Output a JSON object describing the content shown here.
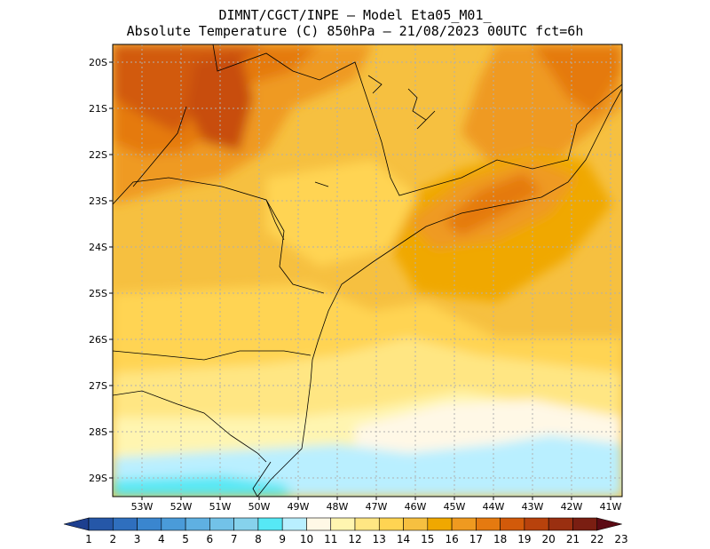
{
  "header": {
    "line1": "DIMNT/CGCT/INPE –  Model Eta05_M01_",
    "line2": "Absolute Temperature (C) 850hPa –  21/08/2023 00UTC fct=6h"
  },
  "axes": {
    "lat_labels": [
      "20S",
      "21S",
      "22S",
      "23S",
      "24S",
      "25S",
      "26S",
      "27S",
      "28S",
      "29S"
    ],
    "lon_labels": [
      "53W",
      "52W",
      "51W",
      "50W",
      "49W",
      "48W",
      "47W",
      "46W",
      "45W",
      "44W",
      "43W",
      "42W",
      "41W"
    ]
  },
  "colorbar": {
    "labels": [
      "1",
      "2",
      "3",
      "4",
      "5",
      "6",
      "7",
      "8",
      "9",
      "10",
      "11",
      "12",
      "13",
      "14",
      "15",
      "16",
      "17",
      "18",
      "19",
      "20",
      "21",
      "22",
      "23"
    ],
    "colors": [
      "#1d3f8f",
      "#2557a8",
      "#2f6fbe",
      "#3a86cf",
      "#4a9bd9",
      "#5fb0e2",
      "#72c2e8",
      "#86d2ec",
      "#56e8f5",
      "#b9efff",
      "#fff8e6",
      "#fff5b0",
      "#ffe683",
      "#ffd452",
      "#f6c040",
      "#f0a800",
      "#ef9a20",
      "#e57a10",
      "#d25a0a",
      "#b8420c",
      "#9a2f10",
      "#7a1e12",
      "#5c0a14"
    ]
  },
  "chart_data": {
    "type": "heatmap",
    "title": "Absolute Temperature (C) 850hPa",
    "xlabel": "",
    "ylabel": "",
    "xlim": [
      -53.5,
      -40.5
    ],
    "ylim": [
      -29.4,
      -19.9
    ],
    "value_range": [
      1,
      23
    ],
    "notes": "850hPa temperature field over southeastern Brazil; warmest (19–21C) in the northwest corner near 20S-21S/51W-53W and along the coast 23S-24S/44W-46W; coolest (9–12C) near 29S, 48W-53W."
  }
}
